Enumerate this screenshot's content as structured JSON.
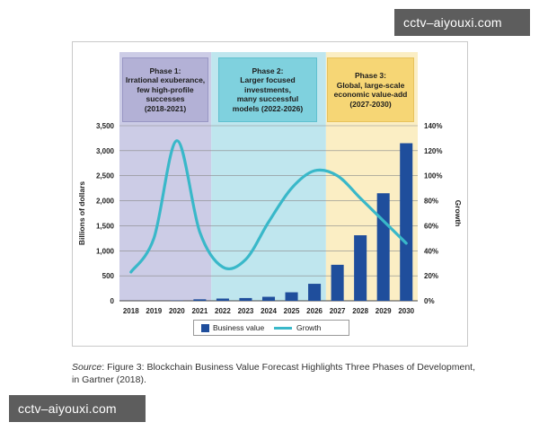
{
  "chart_data": {
    "type": "bar",
    "categories": [
      "2018",
      "2019",
      "2020",
      "2021",
      "2022",
      "2023",
      "2024",
      "2025",
      "2026",
      "2027",
      "2028",
      "2029",
      "2030"
    ],
    "series": [
      {
        "name": "Business value",
        "type": "bar",
        "axis": "left",
        "color": "#1f4e9c",
        "values": [
          0,
          0,
          5,
          30,
          45,
          55,
          80,
          170,
          340,
          720,
          1310,
          2150,
          3150
        ]
      },
      {
        "name": "Growth",
        "type": "line",
        "axis": "right",
        "color": "#39b8c9",
        "values": [
          23,
          50,
          128,
          55,
          27,
          33,
          63,
          90,
          104,
          100,
          82,
          64,
          46
        ]
      }
    ],
    "ylabel": "Billions of dollars",
    "y2label": "Growth",
    "ylim": [
      0,
      3500
    ],
    "y2lim": [
      0,
      140
    ],
    "yticks": [
      "0",
      "500",
      "1,000",
      "1,500",
      "2,000",
      "2,500",
      "3,000",
      "3,500"
    ],
    "y2ticks": [
      "0%",
      "20%",
      "40%",
      "60%",
      "80%",
      "100%",
      "120%",
      "140%"
    ],
    "grid": true,
    "legend_position": "bottom",
    "phases": [
      {
        "label": "Phase 1:\nIrrational exuberance,\nfew high-profile\nsuccesses\n(2018-2021)",
        "color": "#cccce6",
        "from_category": "2018",
        "to_category": "2021"
      },
      {
        "label": "Phase 2:\nLarger focused\ninvestments,\nmany successful\nmodels (2022-2026)",
        "color": "#bfe6ee",
        "from_category": "2022",
        "to_category": "2026"
      },
      {
        "label": "Phase 3:\nGlobal, large-scale\neconomic value-add\n(2027-2030)",
        "color": "#fbeec4",
        "from_category": "2027",
        "to_category": "2030"
      }
    ]
  },
  "legend": {
    "bar_label": "Business value",
    "line_label": "Growth"
  },
  "caption": {
    "source_label": "Source",
    "text": ": Figure 3: Blockchain Business Value Forecast Highlights Three Phases of Development, in Gartner (2018)."
  },
  "watermarks": {
    "top": "cctv–aiyouxi.com",
    "bottom": "cctv–aiyouxi.com"
  }
}
